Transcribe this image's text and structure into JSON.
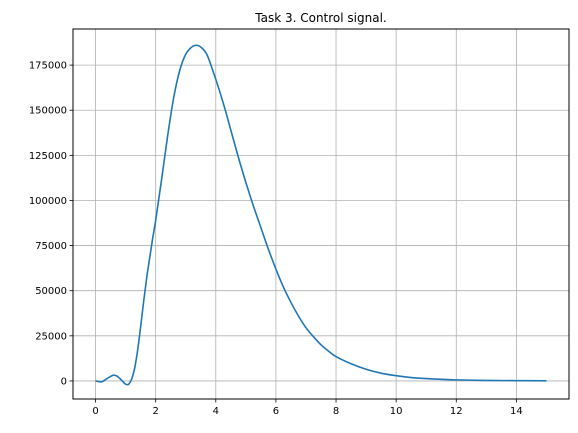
{
  "chart_data": {
    "type": "line",
    "title": "Task 3. Control signal.",
    "xlabel": "",
    "ylabel": "",
    "xlim": [
      -0.75,
      15.75
    ],
    "ylim": [
      -10000,
      195000
    ],
    "grid": true,
    "x_ticks": [
      0,
      2,
      4,
      6,
      8,
      10,
      12,
      14
    ],
    "y_ticks": [
      0,
      25000,
      50000,
      75000,
      100000,
      125000,
      150000,
      175000
    ],
    "series": [
      {
        "color": "#1f77b4",
        "x": [
          0,
          0.2,
          0.35,
          0.5,
          0.6,
          0.7,
          0.8,
          0.9,
          1.0,
          1.1,
          1.2,
          1.3,
          1.4,
          1.5,
          1.6,
          1.7,
          1.8,
          1.9,
          2.0,
          2.2,
          2.4,
          2.6,
          2.8,
          3.0,
          3.2,
          3.35,
          3.5,
          3.7,
          3.9,
          4.1,
          4.3,
          4.5,
          4.75,
          5.0,
          5.25,
          5.5,
          5.75,
          6.0,
          6.25,
          6.5,
          6.75,
          7.0,
          7.25,
          7.5,
          7.75,
          8.0,
          8.5,
          9.0,
          9.5,
          10.0,
          10.5,
          11.0,
          11.5,
          12.0,
          13.0,
          14.0,
          15.0
        ],
        "y": [
          0,
          -500,
          1000,
          2500,
          3200,
          2800,
          1500,
          -200,
          -1800,
          -1800,
          1000,
          7000,
          17000,
          30000,
          44000,
          57000,
          68000,
          79000,
          89000,
          112000,
          136000,
          157000,
          172000,
          181000,
          185000,
          186000,
          185000,
          181000,
          172000,
          162000,
          151000,
          139000,
          124000,
          110000,
          97000,
          85000,
          73000,
          62000,
          52000,
          43500,
          36000,
          29500,
          24500,
          20000,
          16500,
          13500,
          9500,
          6500,
          4300,
          2900,
          1900,
          1300,
          900,
          600,
          300,
          150,
          100
        ]
      }
    ]
  }
}
